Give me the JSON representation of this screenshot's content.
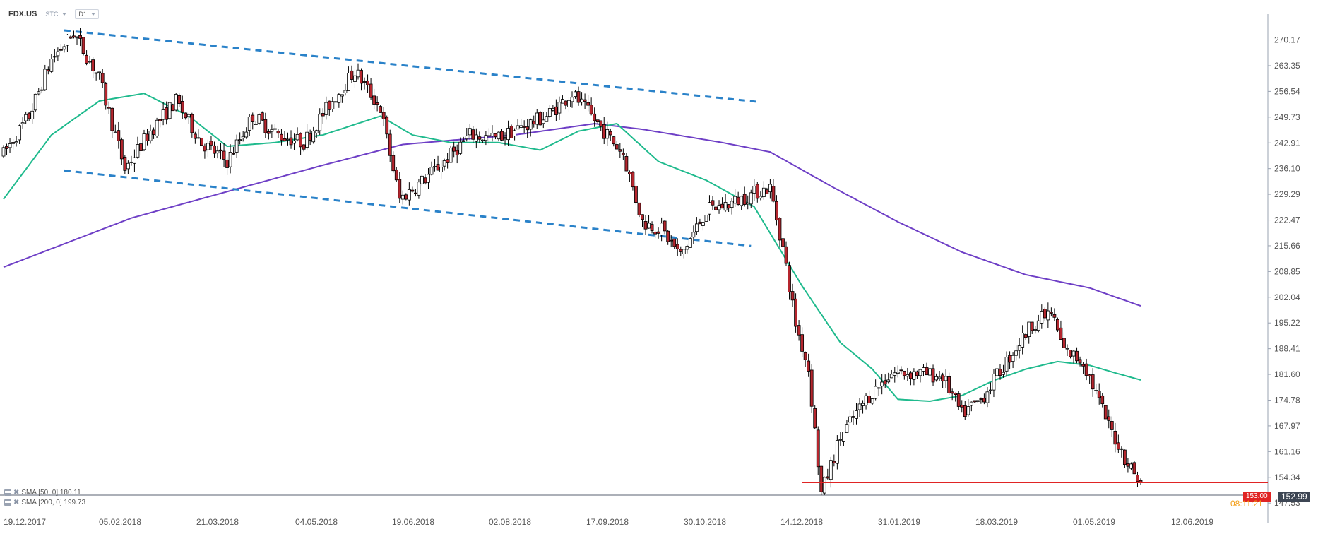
{
  "toolbar": {
    "symbol": "FDX.US",
    "price_type": "STC",
    "interval": "D1"
  },
  "legend": [
    {
      "label": "SMA [50, 0] 180.11",
      "color": "#1fba8d"
    },
    {
      "label": "SMA [200, 0] 199.73",
      "color": "#6e3fc6"
    }
  ],
  "colors": {
    "up": "#ffffff",
    "down": "#b5262e",
    "wick": "#000000",
    "sma50": "#1fba8d",
    "sma200": "#6e3fc6",
    "channel": "#2a82c9",
    "support": "#e02424"
  },
  "chart_data": {
    "type": "candlestick",
    "symbol": "FDX.US",
    "interval": "D1",
    "ylim": [
      144.2,
      277.0
    ],
    "y_ticks": [
      270.17,
      263.35,
      256.54,
      249.73,
      242.91,
      236.1,
      229.29,
      222.47,
      215.66,
      208.85,
      202.04,
      195.22,
      188.41,
      181.6,
      174.78,
      167.97,
      161.16,
      154.34,
      147.53
    ],
    "x_ticks": [
      "19.12.2017",
      "05.02.2018",
      "21.03.2018",
      "04.05.2018",
      "19.06.2018",
      "02.08.2018",
      "17.09.2018",
      "30.10.2018",
      "14.12.2018",
      "31.01.2019",
      "18.03.2019",
      "01.05.2019",
      "12.06.2019"
    ],
    "price_keypoints": [
      [
        0,
        240
      ],
      [
        8,
        250
      ],
      [
        15,
        265
      ],
      [
        22,
        272
      ],
      [
        30,
        260
      ],
      [
        38,
        236
      ],
      [
        46,
        246
      ],
      [
        54,
        254
      ],
      [
        62,
        243
      ],
      [
        70,
        238
      ],
      [
        78,
        250
      ],
      [
        86,
        245
      ],
      [
        94,
        243
      ],
      [
        102,
        253
      ],
      [
        110,
        262
      ],
      [
        118,
        252
      ],
      [
        124,
        228
      ],
      [
        130,
        232
      ],
      [
        138,
        238
      ],
      [
        146,
        245
      ],
      [
        154,
        244
      ],
      [
        162,
        247
      ],
      [
        170,
        250
      ],
      [
        178,
        256
      ],
      [
        186,
        248
      ],
      [
        194,
        240
      ],
      [
        200,
        222
      ],
      [
        206,
        220
      ],
      [
        212,
        213
      ],
      [
        220,
        225
      ],
      [
        228,
        227
      ],
      [
        236,
        230
      ],
      [
        240,
        231
      ],
      [
        244,
        215
      ],
      [
        248,
        195
      ],
      [
        252,
        183
      ],
      [
        256,
        150
      ],
      [
        262,
        165
      ],
      [
        270,
        175
      ],
      [
        278,
        182
      ],
      [
        286,
        182
      ],
      [
        294,
        181
      ],
      [
        300,
        171
      ],
      [
        306,
        175
      ],
      [
        314,
        185
      ],
      [
        322,
        195
      ],
      [
        328,
        198
      ],
      [
        332,
        188
      ],
      [
        338,
        185
      ],
      [
        346,
        168
      ],
      [
        352,
        158
      ],
      [
        356,
        152.99
      ]
    ],
    "sma50": {
      "name": "SMA [50, 0]",
      "value": 180.11,
      "keypoints": [
        [
          0,
          228
        ],
        [
          15,
          245
        ],
        [
          30,
          254
        ],
        [
          44,
          256
        ],
        [
          58,
          250
        ],
        [
          70,
          242
        ],
        [
          85,
          243
        ],
        [
          100,
          245
        ],
        [
          118,
          250
        ],
        [
          128,
          245
        ],
        [
          140,
          243
        ],
        [
          155,
          243
        ],
        [
          168,
          241
        ],
        [
          180,
          246
        ],
        [
          192,
          248
        ],
        [
          205,
          238
        ],
        [
          220,
          233
        ],
        [
          235,
          226
        ],
        [
          250,
          205
        ],
        [
          262,
          190
        ],
        [
          272,
          183
        ],
        [
          280,
          175
        ],
        [
          290,
          174.5
        ],
        [
          300,
          176
        ],
        [
          310,
          180
        ],
        [
          320,
          183
        ],
        [
          330,
          185
        ],
        [
          340,
          184
        ],
        [
          348,
          182
        ],
        [
          356,
          180.11
        ]
      ]
    },
    "sma200": {
      "name": "SMA [200, 0]",
      "value": 199.73,
      "keypoints": [
        [
          0,
          210
        ],
        [
          40,
          223
        ],
        [
          70,
          230
        ],
        [
          100,
          237
        ],
        [
          125,
          242.5
        ],
        [
          160,
          245
        ],
        [
          185,
          248
        ],
        [
          200,
          246.5
        ],
        [
          225,
          243
        ],
        [
          240,
          240.5
        ],
        [
          260,
          231
        ],
        [
          280,
          222
        ],
        [
          300,
          214
        ],
        [
          320,
          208
        ],
        [
          340,
          204.5
        ],
        [
          356,
          199.73
        ]
      ]
    },
    "channel": {
      "upper": [
        [
          19,
          272.7
        ],
        [
          237,
          253.7
        ]
      ],
      "lower": [
        [
          19,
          235.6
        ],
        [
          234,
          215.6
        ]
      ]
    },
    "support": {
      "value": 153.0,
      "label": "153.00",
      "from_bar": 250
    },
    "last_price": {
      "value": 152.99,
      "label": "152.99"
    },
    "countdown": "08:11:21"
  }
}
